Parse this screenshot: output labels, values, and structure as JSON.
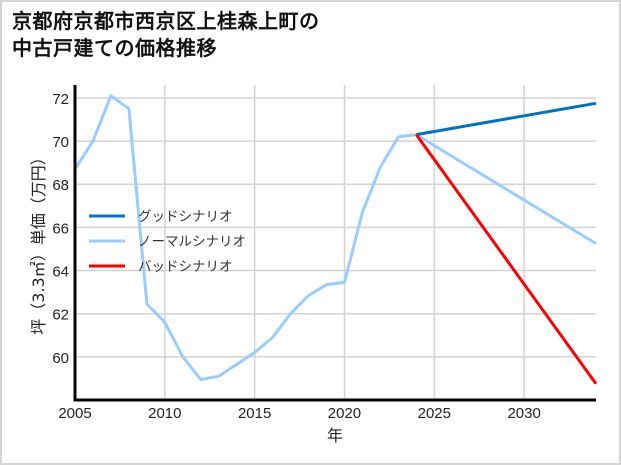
{
  "title": {
    "line1": "京都府京都市西京区上桂森上町の",
    "line2": "中古戸建ての価格推移"
  },
  "colors": {
    "good": "#0072c6",
    "normal": "#99ccff",
    "bad": "#ff0000",
    "grid": "#d3d3d3",
    "axis": "#000000",
    "border": "#d4d4d4"
  },
  "chart_data": {
    "type": "line",
    "title": "京都府京都市西京区上桂森上町の中古戸建ての価格推移",
    "xlabel": "年",
    "ylabel": "坪（3.3㎡）単価（万円）",
    "xlim": [
      2005,
      2034
    ],
    "ylim": [
      58.0,
      72.6
    ],
    "x_ticks": [
      2005,
      2010,
      2015,
      2020,
      2025,
      2030
    ],
    "y_ticks": [
      60,
      62,
      64,
      66,
      68,
      70,
      72
    ],
    "grid": true,
    "legend_position": "center-left",
    "legend": [
      "グッドシナリオ",
      "ノーマルシナリオ",
      "バッドシナリオ"
    ],
    "series": [
      {
        "name": "ノーマルシナリオ",
        "role": "history",
        "color": "#99ccff",
        "x": [
          2005,
          2006,
          2007,
          2008,
          2009,
          2010,
          2011,
          2012,
          2013,
          2015,
          2016,
          2017,
          2018,
          2019,
          2020,
          2021,
          2022,
          2023,
          2024
        ],
        "values": [
          68.7,
          70.0,
          72.1,
          71.5,
          62.45,
          61.6,
          60.0,
          58.95,
          59.1,
          60.2,
          60.9,
          62.0,
          62.85,
          63.35,
          63.45,
          66.7,
          68.8,
          70.2,
          70.3
        ]
      },
      {
        "name": "グッドシナリオ",
        "color": "#0072c6",
        "x": [
          2024,
          2034
        ],
        "values": [
          70.3,
          71.75
        ]
      },
      {
        "name": "ノーマルシナリオ",
        "color": "#99ccff",
        "x": [
          2024,
          2034
        ],
        "values": [
          70.3,
          65.25
        ]
      },
      {
        "name": "バッドシナリオ",
        "color": "#ff0000",
        "x": [
          2024,
          2034
        ],
        "values": [
          70.3,
          58.75
        ]
      }
    ]
  }
}
